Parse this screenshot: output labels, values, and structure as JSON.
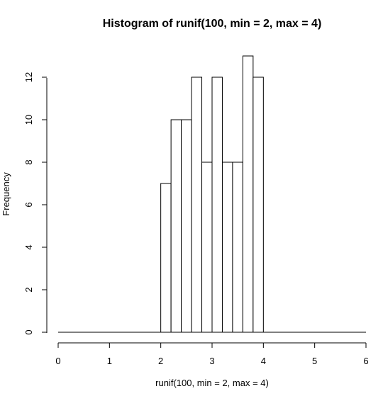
{
  "chart_data": {
    "type": "bar",
    "title": "Histogram of runif(100, min = 2, max = 4)",
    "xlabel": "runif(100, min = 2, max = 4)",
    "ylabel": "Frequency",
    "bin_edges": [
      2.0,
      2.2,
      2.4,
      2.6,
      2.8,
      3.0,
      3.2,
      3.4,
      3.6,
      3.8,
      4.0
    ],
    "values": [
      7,
      10,
      10,
      12,
      8,
      12,
      8,
      8,
      13,
      12
    ],
    "xlim": [
      0,
      6
    ],
    "ylim": [
      0,
      13
    ],
    "x_ticks": [
      0,
      1,
      2,
      3,
      4,
      5,
      6
    ],
    "y_ticks": [
      0,
      2,
      4,
      6,
      8,
      10,
      12
    ],
    "grid": false,
    "colors": {
      "bar_fill": "#ffffff",
      "bar_stroke": "#000000"
    }
  }
}
